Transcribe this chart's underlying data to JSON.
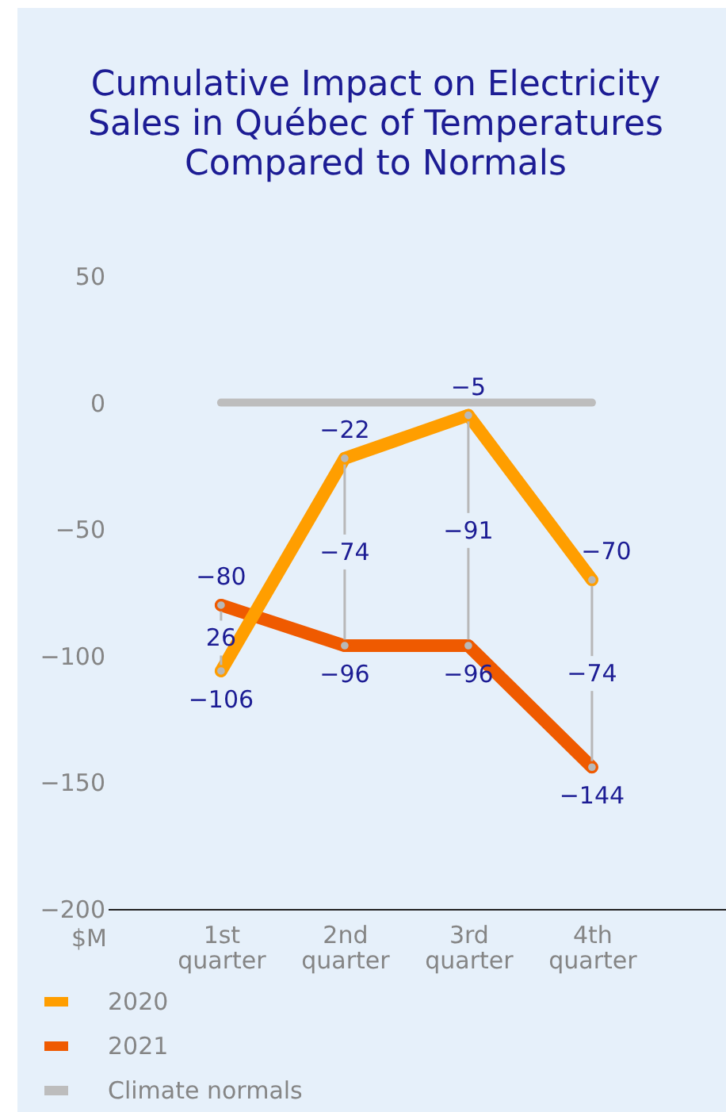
{
  "chart_data": {
    "type": "line",
    "title": "Cumulative Impact on Electricity Sales in Québec of Temperatures Compared to Normals",
    "ylabel": "$M",
    "categories": [
      "1st quarter",
      "2nd quarter",
      "3rd quarter",
      "4th quarter"
    ],
    "series": [
      {
        "name": "2020",
        "color": "#ff9e00",
        "values": [
          -106,
          -22,
          -5,
          -70
        ],
        "value_labels": [
          "−106",
          "−22",
          "−5",
          "−70"
        ]
      },
      {
        "name": "2021",
        "color": "#ef5a00",
        "values": [
          -80,
          -96,
          -96,
          -144
        ],
        "value_labels": [
          "−80",
          "−96",
          "−96",
          "−144"
        ]
      },
      {
        "name": "Climate normals",
        "color": "#bdbdbd",
        "values": [
          0,
          0,
          0,
          0
        ],
        "marker": "none"
      }
    ],
    "ylim": [
      -200,
      50
    ],
    "yticks": [
      -200,
      -150,
      -100,
      -50,
      0,
      50
    ],
    "marker": "circle",
    "legend": "bottom left",
    "annotations": [
      {
        "text": "26",
        "x": "1st quarter",
        "y": -80
      },
      {
        "text": "−74",
        "x": "2nd quarter",
        "y": -96
      },
      {
        "text": "−91",
        "x": "3rd quarter",
        "y": -96
      },
      {
        "text": "−74",
        "x": "4th quarter",
        "y": -144
      }
    ]
  }
}
